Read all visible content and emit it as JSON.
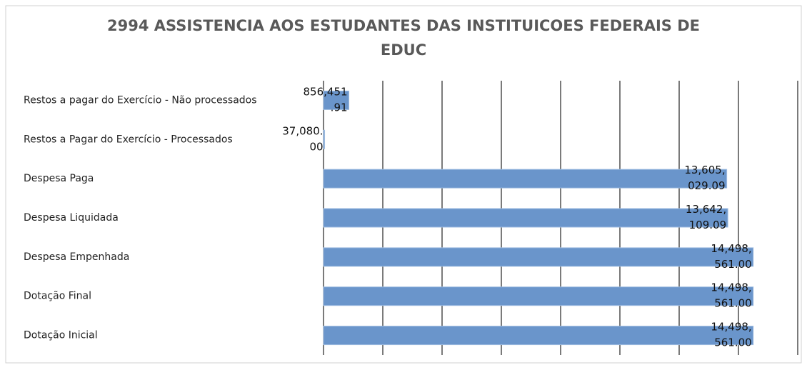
{
  "chart_data": {
    "type": "hbar",
    "title": "2994 ASSISTENCIA AOS ESTUDANTES DAS INSTITUICOES FEDERAIS DE EDUC",
    "categories": [
      "Restos a pagar do Exercício - Não processados",
      "Restos a Pagar do Exercício - Processados",
      "Despesa Paga",
      "Despesa Liquidada",
      "Despesa Empenhada",
      "Dotação Final",
      "Dotação Inicial"
    ],
    "values": [
      856451.91,
      37080.0,
      13605029.09,
      13642109.09,
      14498561.0,
      14498561.0,
      14498561.0
    ],
    "value_labels": [
      "856,451.91",
      "37,080.00",
      "13,605,029.09",
      "13,642,109.09",
      "14,498,561.00",
      "14,498,561.00",
      "14,498,561.00"
    ],
    "color": "#6a95cb",
    "xlim": [
      0,
      16000000
    ],
    "xticks": [
      0,
      2000000,
      4000000,
      6000000,
      8000000,
      10000000,
      12000000,
      14000000,
      16000000
    ],
    "grid": true
  }
}
